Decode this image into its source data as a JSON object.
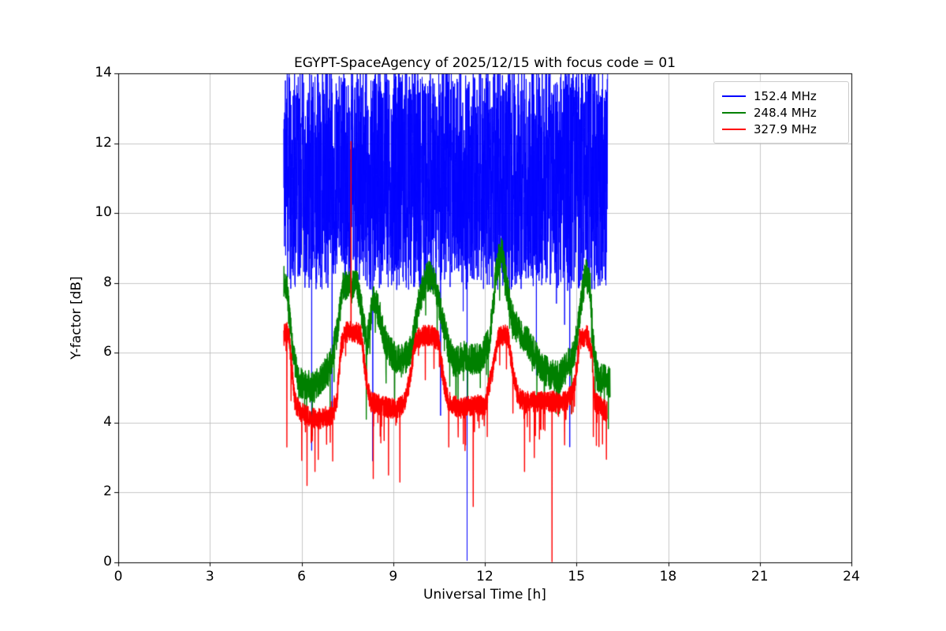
{
  "chart_data": {
    "type": "line",
    "title": "EGYPT-SpaceAgency of 2025/12/15 with focus code = 01",
    "xlabel": "Universal Time [h]",
    "ylabel": "Y-factor [dB]",
    "xlim": [
      0,
      24
    ],
    "ylim": [
      0,
      14
    ],
    "xticks": [
      0,
      3,
      6,
      9,
      12,
      15,
      18,
      21,
      24
    ],
    "yticks": [
      0,
      2,
      4,
      6,
      8,
      10,
      12,
      14
    ],
    "grid": true,
    "grid_color": "#b9b9b9",
    "legend_position": "upper right",
    "series": [
      {
        "name": "152.4 MHz",
        "color": "#0000ff",
        "line_width": 1.0,
        "x_start": 5.42,
        "x_end": 16.02,
        "step": 0.004,
        "seed": 3,
        "noise_amp": 3.2,
        "tail_prob": 0.008,
        "tail_amp": 4.0,
        "mean_keyframes": [
          [
            5.42,
            11.0
          ],
          [
            16.02,
            11.0
          ]
        ],
        "spikes": [
          [
            6.33,
            3.2
          ],
          [
            7.0,
            4.3
          ],
          [
            8.33,
            2.9
          ],
          [
            10.55,
            4.2
          ],
          [
            11.42,
            0.05
          ],
          [
            14.78,
            3.3
          ]
        ]
      },
      {
        "name": "248.4 MHz",
        "color": "#008000",
        "line_width": 1.4,
        "x_start": 5.42,
        "x_end": 16.1,
        "step": 0.004,
        "seed": 7,
        "noise_amp": 0.45,
        "tail_prob": 0.02,
        "tail_amp": 1.5,
        "mean_keyframes": [
          [
            5.42,
            8.05
          ],
          [
            5.52,
            7.9
          ],
          [
            5.62,
            6.8
          ],
          [
            5.75,
            5.8
          ],
          [
            5.9,
            5.15
          ],
          [
            6.4,
            5.0
          ],
          [
            6.7,
            5.3
          ],
          [
            6.95,
            5.7
          ],
          [
            7.15,
            6.5
          ],
          [
            7.35,
            7.9
          ],
          [
            7.6,
            7.9
          ],
          [
            7.8,
            8.15
          ],
          [
            8.0,
            7.0
          ],
          [
            8.15,
            6.3
          ],
          [
            8.35,
            7.6
          ],
          [
            8.55,
            7.1
          ],
          [
            8.75,
            6.3
          ],
          [
            9.0,
            5.9
          ],
          [
            9.35,
            5.8
          ],
          [
            9.6,
            6.1
          ],
          [
            9.85,
            7.5
          ],
          [
            10.1,
            8.2
          ],
          [
            10.35,
            8.1
          ],
          [
            10.6,
            7.0
          ],
          [
            10.8,
            6.2
          ],
          [
            11.0,
            5.7
          ],
          [
            11.3,
            5.9
          ],
          [
            11.6,
            5.8
          ],
          [
            11.9,
            5.9
          ],
          [
            12.15,
            6.3
          ],
          [
            12.4,
            8.5
          ],
          [
            12.55,
            9.0
          ],
          [
            12.7,
            8.0
          ],
          [
            12.9,
            7.0
          ],
          [
            13.1,
            6.6
          ],
          [
            13.35,
            6.4
          ],
          [
            13.6,
            6.0
          ],
          [
            13.85,
            5.6
          ],
          [
            14.1,
            5.4
          ],
          [
            14.45,
            5.3
          ],
          [
            14.75,
            5.7
          ],
          [
            14.95,
            6.1
          ],
          [
            15.15,
            7.4
          ],
          [
            15.3,
            8.3
          ],
          [
            15.45,
            7.9
          ],
          [
            15.55,
            6.2
          ],
          [
            15.68,
            5.35
          ],
          [
            16.1,
            5.15
          ]
        ],
        "spikes": [
          [
            6.1,
            4.1
          ],
          [
            8.12,
            4.1
          ],
          [
            11.05,
            4.5
          ],
          [
            13.95,
            4.3
          ]
        ]
      },
      {
        "name": "327.9 MHz",
        "color": "#ff0000",
        "line_width": 1.4,
        "x_start": 5.42,
        "x_end": 16.0,
        "step": 0.004,
        "seed": 13,
        "noise_amp": 0.3,
        "tail_prob": 0.03,
        "tail_amp": 1.2,
        "mean_keyframes": [
          [
            5.42,
            6.6
          ],
          [
            5.58,
            6.55
          ],
          [
            5.68,
            5.6
          ],
          [
            5.78,
            4.6
          ],
          [
            5.95,
            4.3
          ],
          [
            6.3,
            4.15
          ],
          [
            6.6,
            4.1
          ],
          [
            6.9,
            4.2
          ],
          [
            7.15,
            4.6
          ],
          [
            7.3,
            6.2
          ],
          [
            7.45,
            6.6
          ],
          [
            7.75,
            6.6
          ],
          [
            7.95,
            6.5
          ],
          [
            8.1,
            5.4
          ],
          [
            8.25,
            4.6
          ],
          [
            8.6,
            4.5
          ],
          [
            9.0,
            4.4
          ],
          [
            9.35,
            4.5
          ],
          [
            9.55,
            5.3
          ],
          [
            9.75,
            6.4
          ],
          [
            10.0,
            6.5
          ],
          [
            10.3,
            6.5
          ],
          [
            10.5,
            6.3
          ],
          [
            10.65,
            5.2
          ],
          [
            10.8,
            4.6
          ],
          [
            11.2,
            4.4
          ],
          [
            11.6,
            4.5
          ],
          [
            12.0,
            4.5
          ],
          [
            12.25,
            5.5
          ],
          [
            12.45,
            6.5
          ],
          [
            12.75,
            6.5
          ],
          [
            12.95,
            5.3
          ],
          [
            13.1,
            4.7
          ],
          [
            13.5,
            4.6
          ],
          [
            13.9,
            4.6
          ],
          [
            14.3,
            4.6
          ],
          [
            14.7,
            4.6
          ],
          [
            14.95,
            5.1
          ],
          [
            15.1,
            6.4
          ],
          [
            15.35,
            6.5
          ],
          [
            15.5,
            6.0
          ],
          [
            15.6,
            4.6
          ],
          [
            15.8,
            4.45
          ],
          [
            16.0,
            4.3
          ]
        ],
        "spikes": [
          [
            5.52,
            3.3
          ],
          [
            6.18,
            2.2
          ],
          [
            6.44,
            2.6
          ],
          [
            7.02,
            2.9
          ],
          [
            7.62,
            12.05
          ],
          [
            8.35,
            2.4
          ],
          [
            8.85,
            2.5
          ],
          [
            9.22,
            2.3
          ],
          [
            10.82,
            3.3
          ],
          [
            11.35,
            3.2
          ],
          [
            11.62,
            1.6
          ],
          [
            12.08,
            3.6
          ],
          [
            13.3,
            2.6
          ],
          [
            13.62,
            3.0
          ],
          [
            14.2,
            0.02
          ],
          [
            15.55,
            3.6
          ]
        ]
      }
    ]
  }
}
